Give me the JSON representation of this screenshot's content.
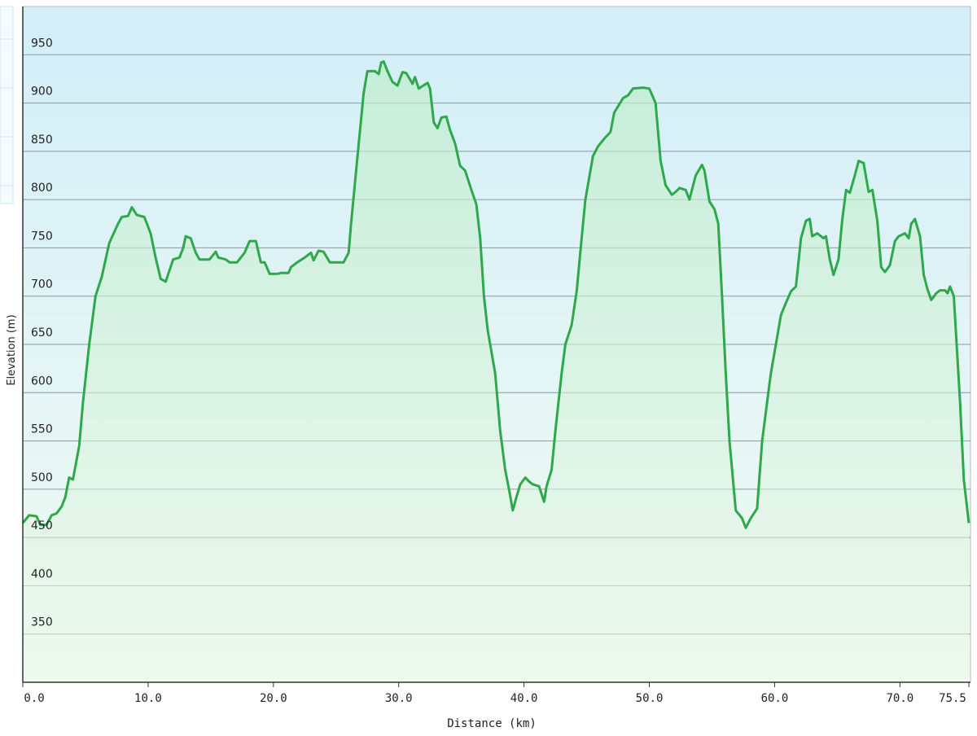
{
  "chart_data": {
    "type": "area",
    "color": "#2ea84a",
    "grid": true,
    "xlabel": "Distance  (km)",
    "ylabel": "Elevation (m)",
    "xlim": [
      0,
      75.5
    ],
    "ylim": [
      300,
      1000
    ],
    "xticks": [
      {
        "value": 0,
        "label": "0.0"
      },
      {
        "value": 10,
        "label": "10.0"
      },
      {
        "value": 20,
        "label": "20.0"
      },
      {
        "value": 30,
        "label": "30.0"
      },
      {
        "value": 40,
        "label": "40.0"
      },
      {
        "value": 50,
        "label": "50.0"
      },
      {
        "value": 60,
        "label": "60.0"
      },
      {
        "value": 70,
        "label": "70.0"
      },
      {
        "value": 75.5,
        "label": "75.5"
      }
    ],
    "yticks": [
      350,
      400,
      450,
      500,
      550,
      600,
      650,
      700,
      750,
      800,
      850,
      900,
      950
    ],
    "x": [
      0.0,
      0.5,
      1.1,
      1.4,
      1.9,
      2.3,
      2.7,
      3.1,
      3.4,
      3.7,
      4.0,
      4.5,
      4.8,
      5.3,
      5.8,
      6.3,
      6.9,
      7.6,
      7.9,
      8.4,
      8.7,
      9.1,
      9.7,
      10.2,
      10.6,
      11.0,
      11.4,
      12.0,
      12.5,
      12.8,
      13.0,
      13.4,
      13.8,
      14.1,
      14.9,
      15.4,
      15.6,
      16.2,
      16.5,
      17.1,
      17.7,
      18.1,
      18.6,
      19.0,
      19.3,
      19.7,
      20.3,
      20.6,
      21.2,
      21.4,
      21.9,
      22.5,
      23.0,
      23.2,
      23.6,
      24.0,
      24.5,
      25.6,
      26.0,
      26.2,
      26.6,
      26.9,
      27.2,
      27.5,
      28.1,
      28.4,
      28.6,
      28.8,
      29.1,
      29.5,
      29.9,
      30.3,
      30.6,
      31.1,
      31.3,
      31.6,
      32.3,
      32.5,
      32.8,
      33.1,
      33.4,
      33.8,
      34.1,
      34.5,
      34.9,
      35.3,
      35.8,
      36.2,
      36.5,
      36.8,
      37.1,
      37.7,
      38.1,
      38.5,
      38.8,
      39.1,
      39.4,
      39.7,
      40.1,
      40.4,
      40.7,
      41.2,
      41.6,
      41.8,
      42.2,
      42.5,
      43.0,
      43.3,
      43.8,
      44.2,
      44.6,
      44.9,
      45.5,
      45.9,
      46.4,
      46.9,
      47.2,
      47.9,
      48.3,
      48.7,
      49.5,
      50.0,
      50.5,
      50.9,
      51.3,
      51.8,
      52.1,
      52.4,
      52.9,
      53.2,
      53.7,
      54.2,
      54.4,
      54.8,
      55.2,
      55.5,
      55.8,
      56.1,
      56.4,
      56.9,
      57.4,
      57.7,
      58.1,
      58.6,
      59.0,
      59.4,
      59.7,
      60.1,
      60.5,
      60.8,
      61.3,
      61.7,
      62.1,
      62.5,
      62.8,
      63.0,
      63.4,
      63.9,
      64.1,
      64.4,
      64.7,
      65.1,
      65.4,
      65.7,
      66.0,
      66.4,
      66.7,
      67.1,
      67.5,
      67.8,
      68.2,
      68.5,
      68.8,
      69.2,
      69.6,
      69.9,
      70.4,
      70.7,
      70.9,
      71.2,
      71.6,
      71.9,
      72.2,
      72.5,
      72.9,
      73.2,
      73.6,
      73.8,
      74.0,
      74.3,
      74.8,
      75.1,
      75.5
    ],
    "values": [
      465,
      473,
      472,
      463,
      463,
      473,
      475,
      482,
      492,
      512,
      510,
      545,
      590,
      650,
      700,
      720,
      755,
      775,
      782,
      783,
      792,
      784,
      782,
      765,
      740,
      718,
      715,
      738,
      740,
      750,
      762,
      760,
      745,
      738,
      738,
      746,
      740,
      738,
      735,
      735,
      745,
      757,
      757,
      735,
      735,
      723,
      723,
      724,
      724,
      730,
      735,
      740,
      745,
      737,
      747,
      746,
      735,
      735,
      745,
      775,
      830,
      870,
      910,
      933,
      933,
      930,
      942,
      943,
      933,
      922,
      918,
      932,
      931,
      920,
      927,
      915,
      921,
      915,
      880,
      874,
      885,
      886,
      872,
      858,
      835,
      830,
      810,
      795,
      760,
      700,
      665,
      620,
      560,
      520,
      500,
      478,
      492,
      505,
      512,
      508,
      505,
      503,
      487,
      503,
      520,
      560,
      620,
      650,
      670,
      705,
      760,
      800,
      845,
      855,
      863,
      870,
      890,
      905,
      908,
      915,
      916,
      915,
      900,
      840,
      815,
      805,
      808,
      812,
      810,
      800,
      825,
      836,
      830,
      798,
      790,
      775,
      700,
      620,
      550,
      478,
      470,
      460,
      470,
      480,
      550,
      590,
      620,
      650,
      680,
      690,
      705,
      710,
      760,
      778,
      780,
      762,
      765,
      760,
      762,
      738,
      722,
      738,
      780,
      810,
      807,
      825,
      840,
      838,
      808,
      810,
      778,
      730,
      725,
      732,
      757,
      762,
      765,
      760,
      775,
      780,
      762,
      722,
      707,
      696,
      703,
      706,
      706,
      703,
      710,
      700,
      590,
      510,
      465
    ]
  }
}
